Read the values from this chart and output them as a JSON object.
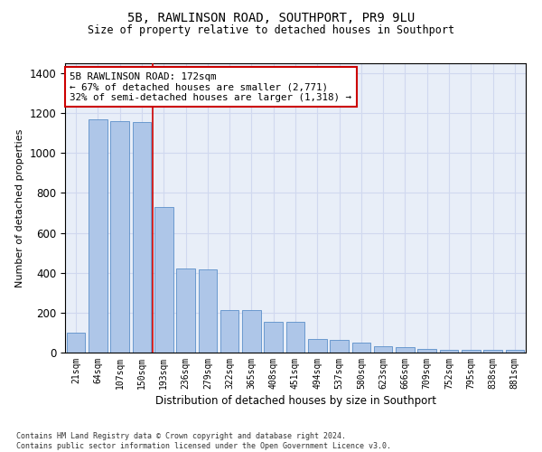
{
  "title": "5B, RAWLINSON ROAD, SOUTHPORT, PR9 9LU",
  "subtitle": "Size of property relative to detached houses in Southport",
  "xlabel": "Distribution of detached houses by size in Southport",
  "ylabel": "Number of detached properties",
  "categories": [
    "21sqm",
    "64sqm",
    "107sqm",
    "150sqm",
    "193sqm",
    "236sqm",
    "279sqm",
    "322sqm",
    "365sqm",
    "408sqm",
    "451sqm",
    "494sqm",
    "537sqm",
    "580sqm",
    "623sqm",
    "666sqm",
    "709sqm",
    "752sqm",
    "795sqm",
    "838sqm",
    "881sqm"
  ],
  "values": [
    100,
    1170,
    1160,
    1155,
    730,
    420,
    415,
    215,
    215,
    155,
    155,
    70,
    65,
    48,
    30,
    28,
    18,
    14,
    12,
    12,
    12
  ],
  "bar_color": "#aec6e8",
  "bar_edge_color": "#5b8fc9",
  "grid_color": "#d0d8ef",
  "bg_color": "#e8eef8",
  "annotation_text": "5B RAWLINSON ROAD: 172sqm\n← 67% of detached houses are smaller (2,771)\n32% of semi-detached houses are larger (1,318) →",
  "annotation_box_color": "#ffffff",
  "annotation_box_edge": "#cc0000",
  "vline_x": 3.5,
  "vline_color": "#cc0000",
  "footer": "Contains HM Land Registry data © Crown copyright and database right 2024.\nContains public sector information licensed under the Open Government Licence v3.0.",
  "ylim": [
    0,
    1450
  ],
  "yticks": [
    0,
    200,
    400,
    600,
    800,
    1000,
    1200,
    1400
  ]
}
